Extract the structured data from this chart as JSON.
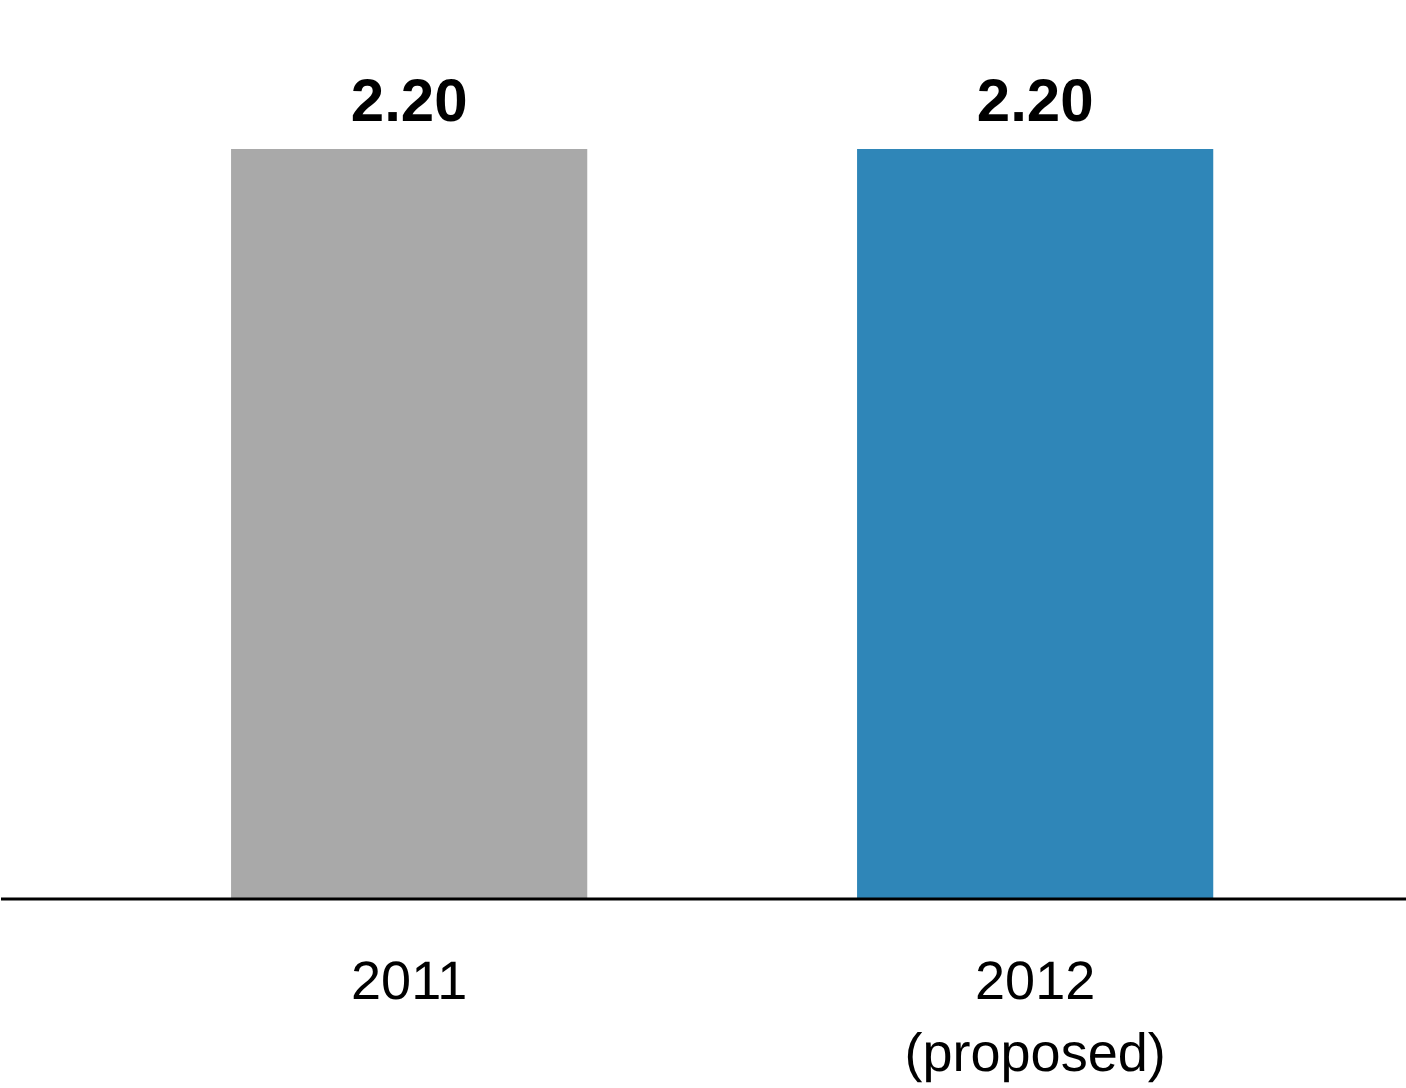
{
  "chart_data": {
    "type": "bar",
    "categories": [
      "2011",
      "2012\n(proposed)"
    ],
    "values": [
      2.2,
      2.2
    ],
    "colors": [
      "#a9a9a9",
      "#2f86b8"
    ],
    "data_labels": true,
    "value_labels": [
      "2.20",
      "2.20"
    ],
    "grid": false
  }
}
